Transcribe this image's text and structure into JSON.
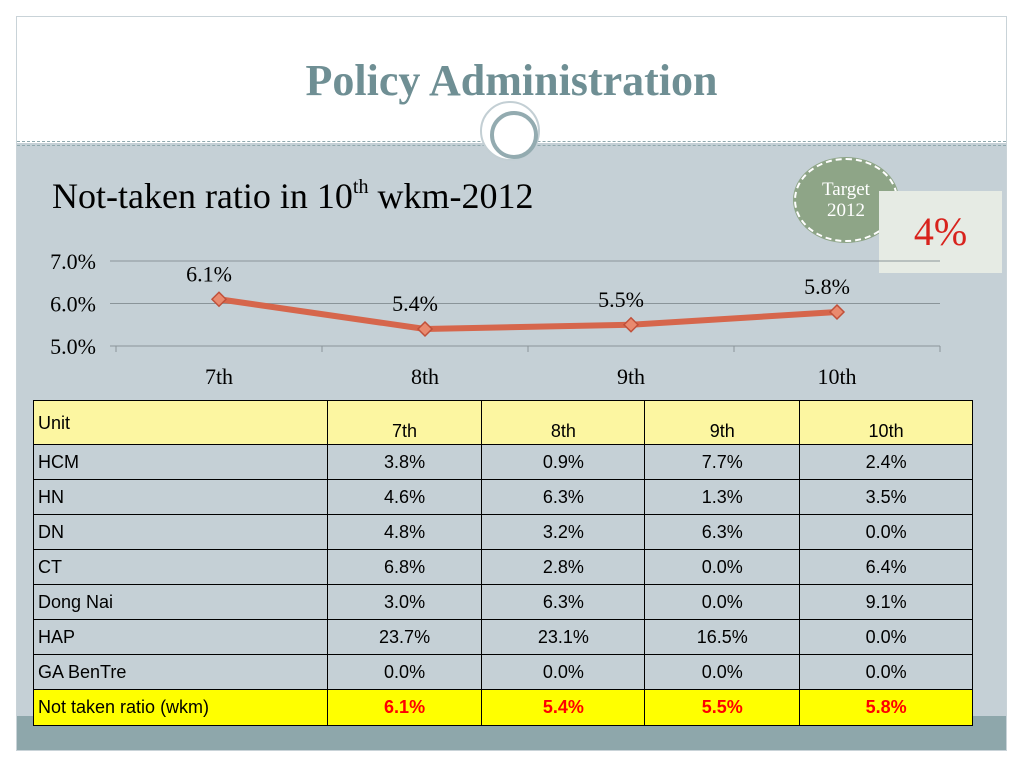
{
  "slide": {
    "title": "Policy Administration",
    "subtitle": {
      "text": "Not-taken ratio in 10",
      "superscript": "th",
      "suffix": " wkm-2012"
    }
  },
  "target": {
    "label_line1": "Target",
    "label_line2": "2012",
    "value": "4%"
  },
  "colors": {
    "title": "#6f8f94",
    "line": "#d6664c",
    "marker": "#e98a6f",
    "target_value": "#d8231d",
    "header_fill": "#fcf6a1",
    "summary_fill": "#ffff00",
    "highlight_text": "#ff0000"
  },
  "chart_data": {
    "type": "line",
    "categories": [
      "7th",
      "8th",
      "9th",
      "10th"
    ],
    "series": [
      {
        "values": [
          6.1,
          5.4,
          5.5,
          5.8
        ]
      }
    ],
    "data_labels": [
      "6.1%",
      "5.4%",
      "5.5%",
      "5.8%"
    ],
    "ylim": [
      5.0,
      7.0
    ],
    "y_ticks": [
      {
        "value": 7.0,
        "label": "7.0%"
      },
      {
        "value": 6.0,
        "label": "6.0%"
      },
      {
        "value": 5.0,
        "label": "5.0%"
      }
    ],
    "grid": true,
    "legend": "none"
  },
  "table": {
    "header_label": "Unit",
    "columns": [
      "7th",
      "8th",
      "9th",
      "10th"
    ],
    "rows": [
      {
        "unit": " HCM",
        "values": [
          "3.8%",
          "0.9%",
          "7.7%",
          "2.4%"
        ]
      },
      {
        "unit": "HN",
        "values": [
          "4.6%",
          "6.3%",
          "1.3%",
          "3.5%"
        ]
      },
      {
        "unit": "DN",
        "values": [
          "4.8%",
          "3.2%",
          "6.3%",
          "0.0%"
        ]
      },
      {
        "unit": " CT",
        "values": [
          "6.8%",
          "2.8%",
          "0.0%",
          "6.4%"
        ]
      },
      {
        "unit": "Dong Nai",
        "values": [
          "3.0%",
          "6.3%",
          "0.0%",
          "9.1%"
        ]
      },
      {
        "unit": "HAP",
        "values": [
          "23.7%",
          "23.1%",
          "16.5%",
          "0.0%"
        ]
      },
      {
        "unit": "GA BenTre",
        "values": [
          "0.0%",
          "0.0%",
          "0.0%",
          "0.0%"
        ]
      }
    ],
    "summary": {
      "unit": "Not taken ratio (wkm)",
      "values": [
        "6.1%",
        "5.4%",
        "5.5%",
        "5.8%"
      ]
    }
  }
}
